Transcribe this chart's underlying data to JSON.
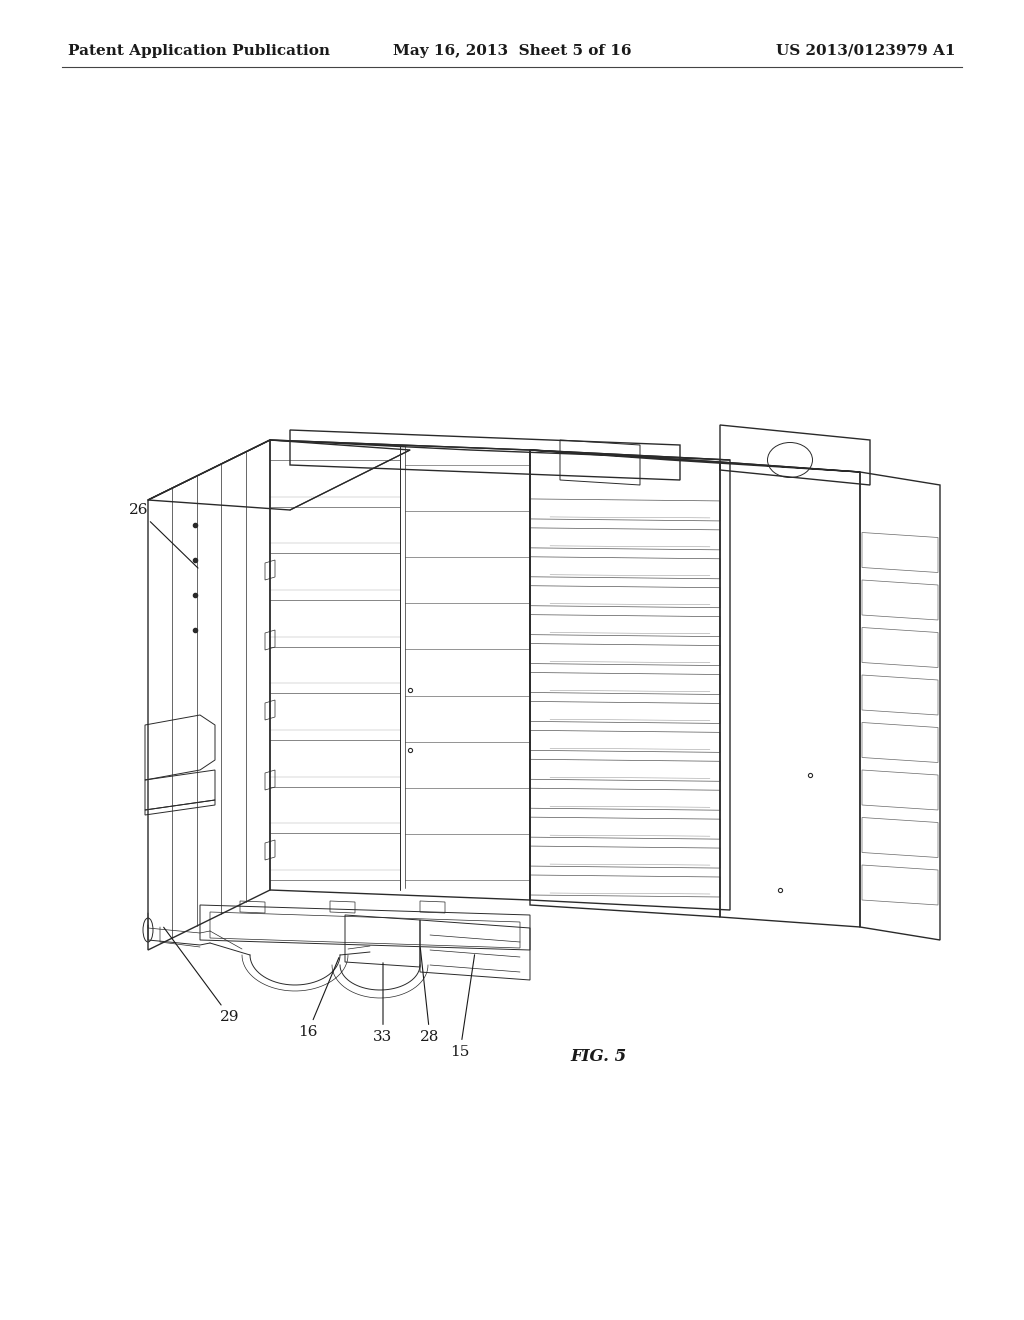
{
  "header_left": "Patent Application Publication",
  "header_center": "May 16, 2013  Sheet 5 of 16",
  "header_right": "US 2013/0123979 A1",
  "fig_label": "FIG. 5",
  "bg_color": "#ffffff",
  "text_color": "#1a1a1a",
  "line_color": "#2a2a2a",
  "header_fontsize": 11,
  "label_fontsize": 11,
  "fig_label_fontsize": 12,
  "page_width": 10.24,
  "page_height": 13.2,
  "dpi": 100
}
